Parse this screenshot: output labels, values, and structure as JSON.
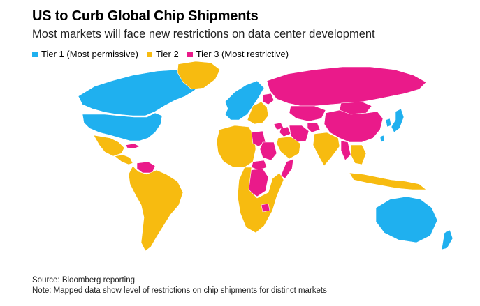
{
  "header": {
    "title": "US to Curb Global Chip Shipments",
    "subtitle": "Most markets will face new restrictions on data center development"
  },
  "legend": [
    {
      "label": "Tier 1 (Most permissive)",
      "color": "#1fb0ef"
    },
    {
      "label": "Tier 2",
      "color": "#f7bb10"
    },
    {
      "label": "Tier 3 (Most restrictive)",
      "color": "#ea1a8a"
    }
  ],
  "footer": {
    "source": "Source: Bloomberg reporting",
    "note": "Note: Mapped data show level of restrictions on chip shipments for distinct markets"
  },
  "map": {
    "regions": [
      {
        "name": "Canada",
        "tier": 1
      },
      {
        "name": "United States",
        "tier": 1
      },
      {
        "name": "Greenland",
        "tier": 2
      },
      {
        "name": "Mexico",
        "tier": 2
      },
      {
        "name": "Cuba",
        "tier": 3
      },
      {
        "name": "Central America",
        "tier": 2
      },
      {
        "name": "Venezuela",
        "tier": 3
      },
      {
        "name": "South America",
        "tier": 2
      },
      {
        "name": "Western Europe",
        "tier": 1
      },
      {
        "name": "Eastern Europe",
        "tier": 2
      },
      {
        "name": "Belarus",
        "tier": 3
      },
      {
        "name": "Russia",
        "tier": 3
      },
      {
        "name": "Kazakhstan",
        "tier": 3
      },
      {
        "name": "Mongolia",
        "tier": 3
      },
      {
        "name": "China",
        "tier": 3
      },
      {
        "name": "Iran",
        "tier": 3
      },
      {
        "name": "Iraq",
        "tier": 3
      },
      {
        "name": "Syria",
        "tier": 3
      },
      {
        "name": "Afghanistan",
        "tier": 3
      },
      {
        "name": "North Africa",
        "tier": 2
      },
      {
        "name": "Libya",
        "tier": 3
      },
      {
        "name": "Sudan",
        "tier": 3
      },
      {
        "name": "Central African Republic",
        "tier": 3
      },
      {
        "name": "DR Congo",
        "tier": 3
      },
      {
        "name": "Somalia",
        "tier": 3
      },
      {
        "name": "Zimbabwe",
        "tier": 3
      },
      {
        "name": "Southern Africa",
        "tier": 2
      },
      {
        "name": "Saudi Arabia",
        "tier": 2
      },
      {
        "name": "India",
        "tier": 2
      },
      {
        "name": "Myanmar",
        "tier": 3
      },
      {
        "name": "Southeast Asia",
        "tier": 2
      },
      {
        "name": "Japan",
        "tier": 1
      },
      {
        "name": "South Korea",
        "tier": 1
      },
      {
        "name": "Taiwan",
        "tier": 1
      },
      {
        "name": "Indonesia",
        "tier": 2
      },
      {
        "name": "Australia",
        "tier": 1
      },
      {
        "name": "New Zealand",
        "tier": 1
      }
    ]
  }
}
